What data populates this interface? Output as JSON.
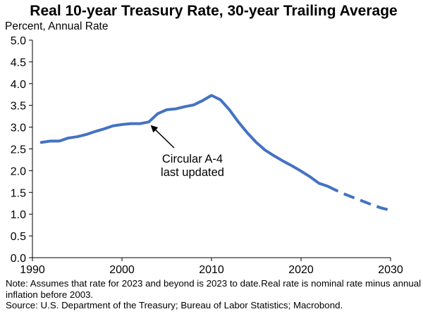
{
  "chart_data": {
    "type": "line",
    "title": "Real 10-year Treasury Rate, 30-year Trailing Average",
    "ylabel": "Percent, Annual Rate",
    "xlim": [
      1990,
      2030
    ],
    "ylim": [
      0.0,
      5.0
    ],
    "x_ticks": [
      "1990",
      "2000",
      "2010",
      "2020",
      "2030"
    ],
    "y_ticks": [
      "0.0",
      "0.5",
      "1.0",
      "1.5",
      "2.0",
      "2.5",
      "3.0",
      "3.5",
      "4.0",
      "4.5",
      "5.0"
    ],
    "grid": false,
    "series": [
      {
        "color": "#4472c4",
        "solid": [
          [
            1991,
            2.65
          ],
          [
            1992,
            2.68
          ],
          [
            1993,
            2.68
          ],
          [
            1994,
            2.75
          ],
          [
            1995,
            2.78
          ],
          [
            1996,
            2.83
          ],
          [
            1997,
            2.9
          ],
          [
            1998,
            2.96
          ],
          [
            1999,
            3.03
          ],
          [
            2000,
            3.06
          ],
          [
            2001,
            3.08
          ],
          [
            2002,
            3.08
          ],
          [
            2003,
            3.12
          ],
          [
            2004,
            3.31
          ],
          [
            2005,
            3.4
          ],
          [
            2006,
            3.42
          ],
          [
            2007,
            3.47
          ],
          [
            2008,
            3.51
          ],
          [
            2009,
            3.61
          ],
          [
            2010,
            3.73
          ],
          [
            2011,
            3.63
          ],
          [
            2012,
            3.4
          ],
          [
            2013,
            3.12
          ],
          [
            2014,
            2.87
          ],
          [
            2015,
            2.65
          ],
          [
            2016,
            2.47
          ],
          [
            2017,
            2.34
          ],
          [
            2018,
            2.22
          ],
          [
            2019,
            2.11
          ],
          [
            2020,
            1.99
          ],
          [
            2021,
            1.86
          ],
          [
            2022,
            1.71
          ],
          [
            2023,
            1.64
          ]
        ],
        "dashed": [
          [
            2023,
            1.64
          ],
          [
            2024,
            1.54
          ],
          [
            2025,
            1.45
          ],
          [
            2026,
            1.37
          ],
          [
            2027,
            1.29
          ],
          [
            2028,
            1.21
          ],
          [
            2029,
            1.14
          ],
          [
            2030,
            1.09
          ]
        ]
      }
    ],
    "annotations": [
      {
        "text_lines": [
          "Circular A-4",
          "last updated"
        ],
        "arrow_to": [
          2003,
          3.12
        ]
      }
    ]
  },
  "note": "Note: Assumes that rate for 2023 and beyond is 2023 to date.Real rate is nominal rate minus annual inflation before 2003.",
  "source": "Source: U.S. Department of the Treasury; Bureau of Labor Statistics; Macrobond."
}
